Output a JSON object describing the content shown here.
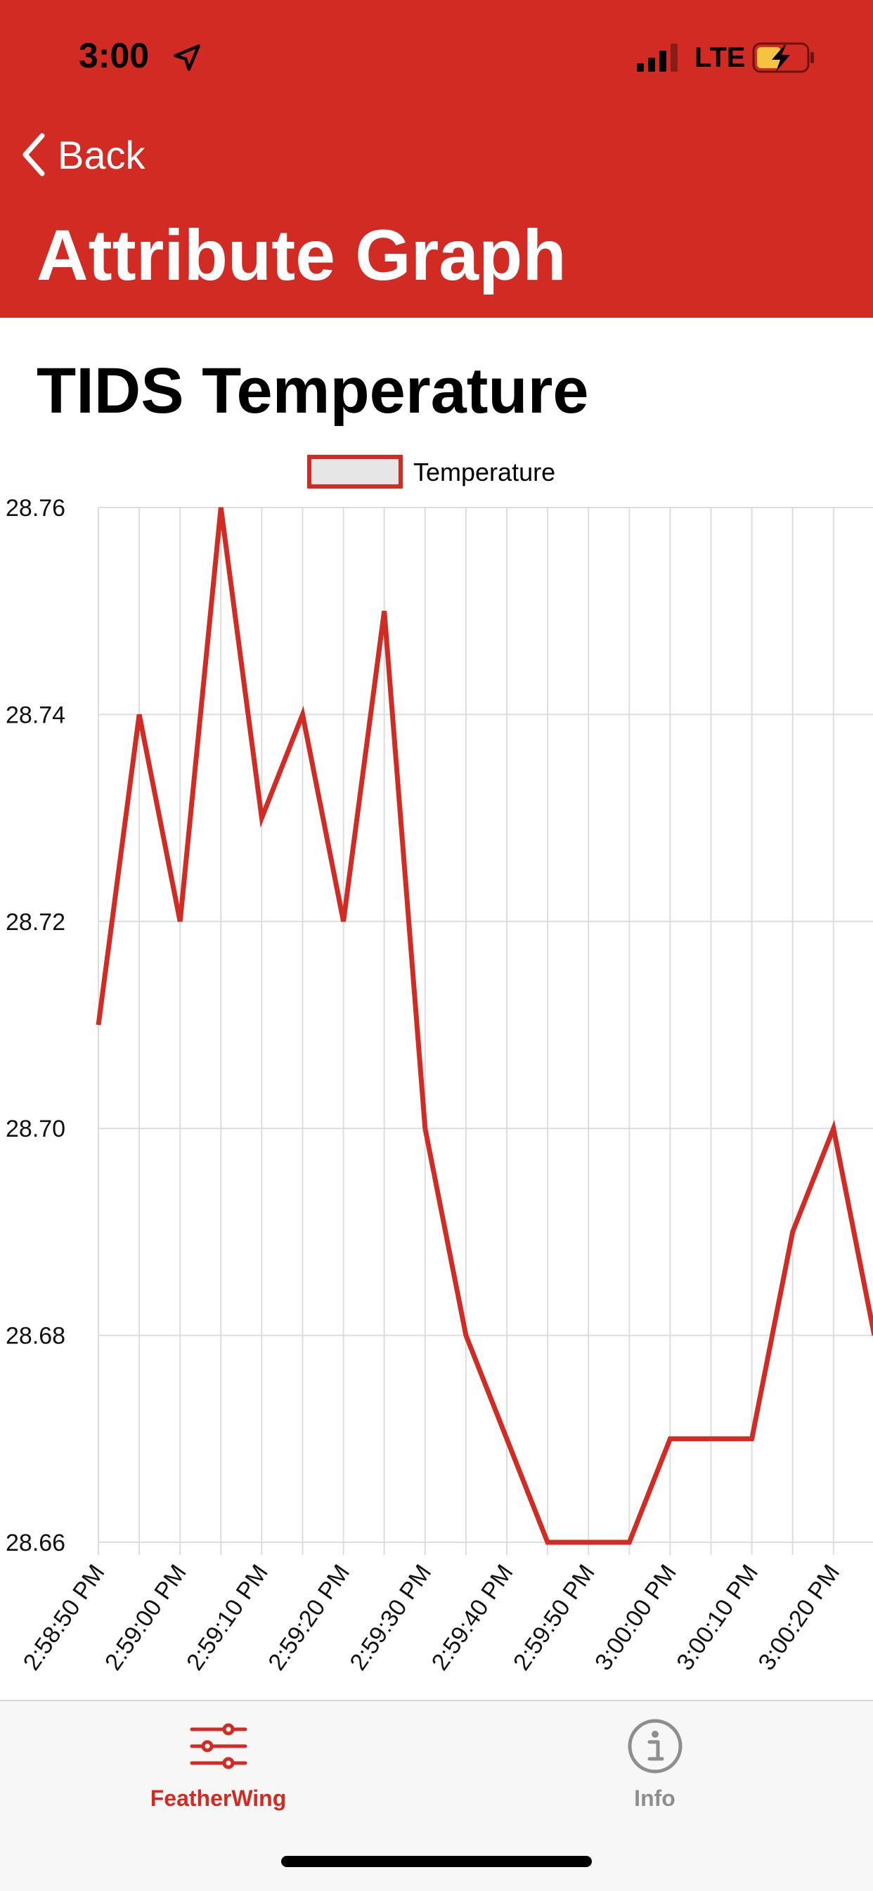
{
  "status_bar": {
    "time": "3:00",
    "network": "LTE",
    "icons": [
      "location-arrow-icon",
      "signal-bars-icon",
      "battery-charging-icon"
    ]
  },
  "nav": {
    "back_label": "Back",
    "title": "Attribute Graph"
  },
  "chart_title": "TIDS Temperature",
  "colors": {
    "accent": "#d22b23",
    "grid": "#dddddd",
    "legend_fill": "#e6e6e6",
    "inactive_tab": "#8e8e8e"
  },
  "chart_data": {
    "type": "line",
    "title": "TIDS Temperature",
    "legend": "top-center",
    "grid": true,
    "x": [
      "2:58:50 PM",
      "2:58:55 PM",
      "2:59:00 PM",
      "2:59:05 PM",
      "2:59:10 PM",
      "2:59:15 PM",
      "2:59:20 PM",
      "2:59:25 PM",
      "2:59:30 PM",
      "2:59:35 PM",
      "2:59:40 PM",
      "2:59:45 PM",
      "2:59:50 PM",
      "2:59:55 PM",
      "3:00:00 PM",
      "3:00:05 PM",
      "3:00:10 PM",
      "3:00:15 PM",
      "3:00:20 PM",
      "3:00:25 PM"
    ],
    "x_tick_labels": [
      "2:58:50 PM",
      "2:59:00 PM",
      "2:59:10 PM",
      "2:59:20 PM",
      "2:59:30 PM",
      "2:59:40 PM",
      "2:59:50 PM",
      "3:00:00 PM",
      "3:00:10 PM",
      "3:00:20 PM"
    ],
    "series": [
      {
        "name": "Temperature",
        "values": [
          28.71,
          28.74,
          28.72,
          28.76,
          28.73,
          28.74,
          28.72,
          28.75,
          28.7,
          28.68,
          28.67,
          28.66,
          28.66,
          28.66,
          28.67,
          28.67,
          28.67,
          28.69,
          28.7,
          28.68
        ]
      }
    ],
    "y_tick_labels": [
      "28.76",
      "28.74",
      "28.72",
      "28.70",
      "28.68",
      "28.66"
    ],
    "ylim": [
      28.66,
      28.76
    ]
  },
  "tabs": [
    {
      "label": "FeatherWing",
      "icon": "sliders-icon",
      "active": true
    },
    {
      "label": "Info",
      "icon": "info-circle-icon",
      "active": false
    }
  ]
}
